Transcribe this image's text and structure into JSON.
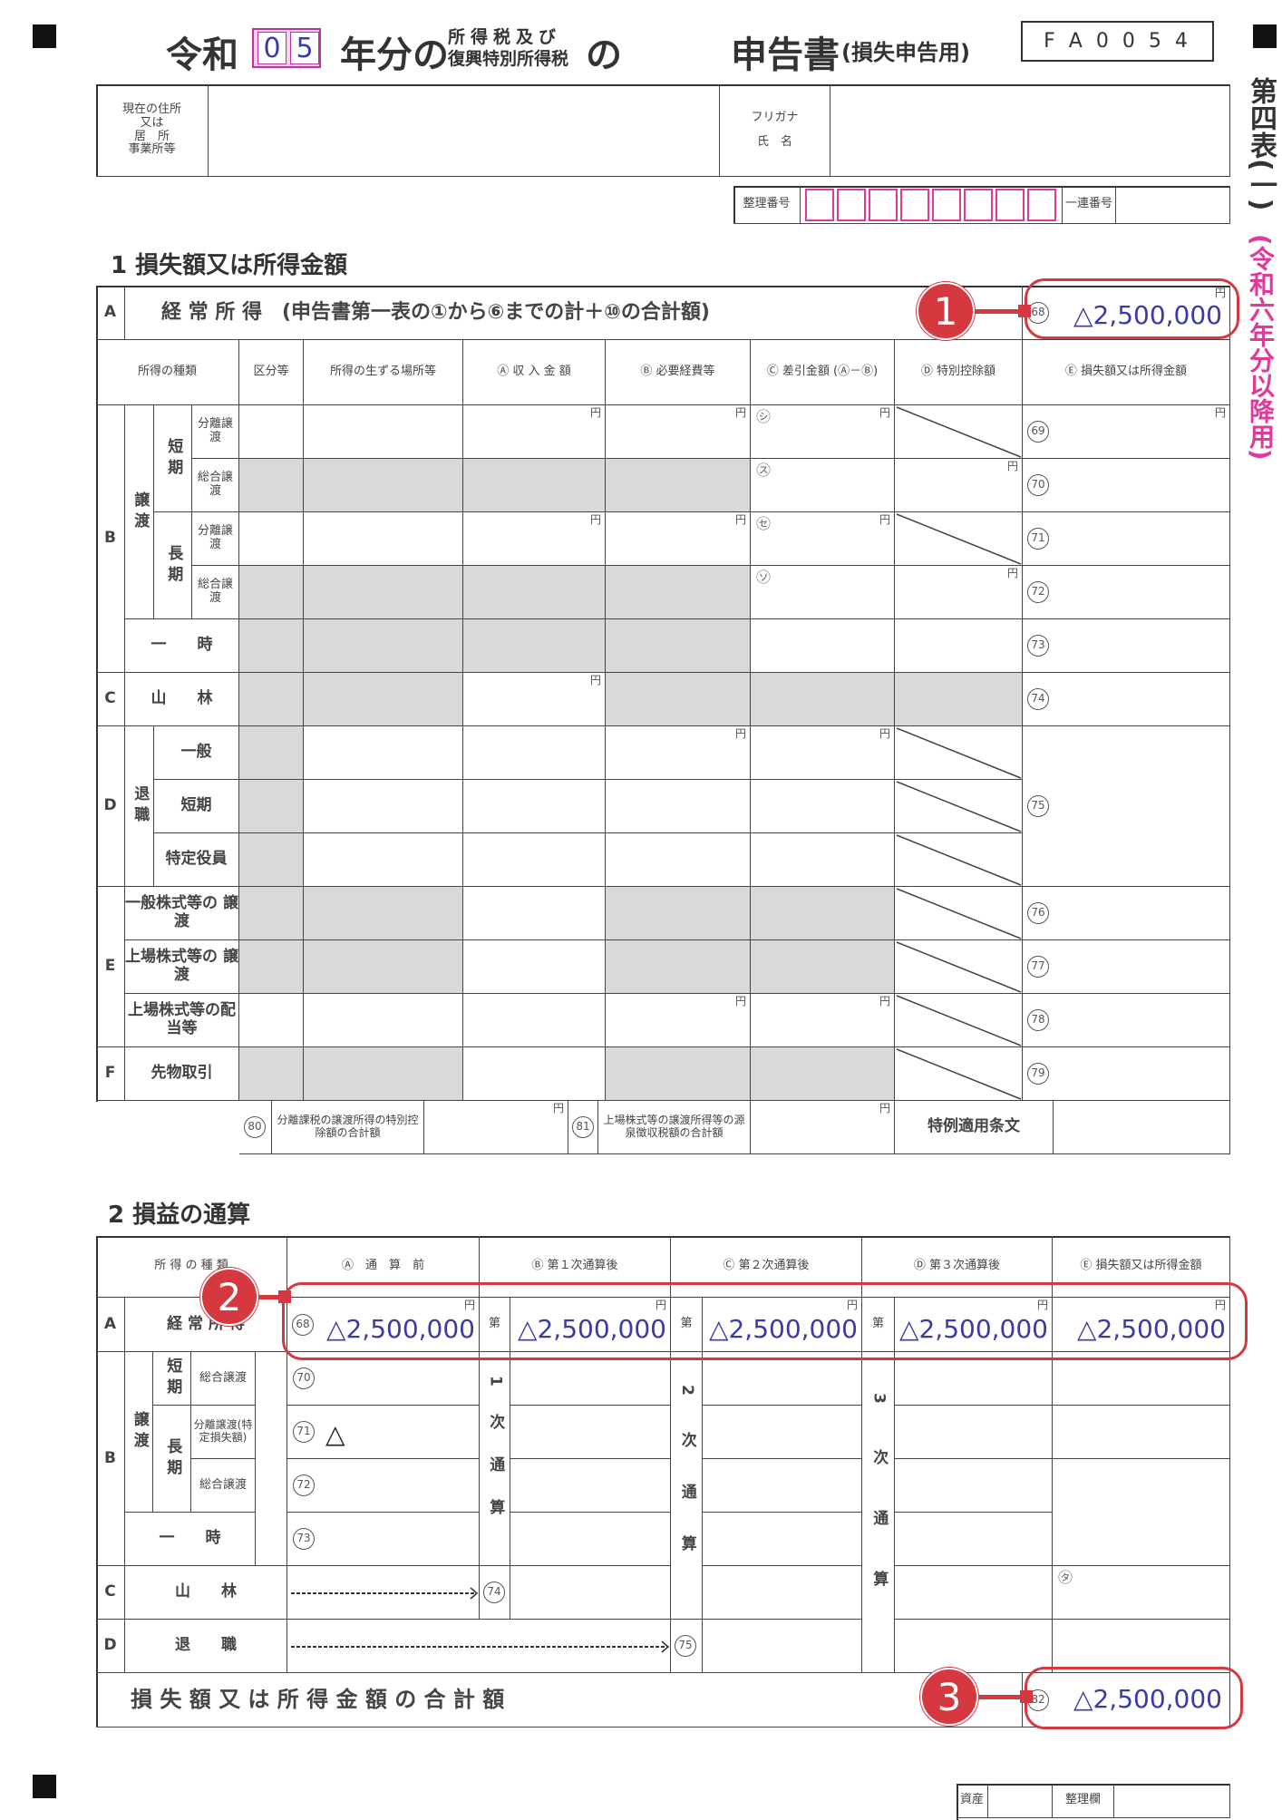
{
  "header": {
    "era": "令和",
    "year_digits": [
      "0",
      "5"
    ],
    "year_suffix": "年分の",
    "tax_line1": "所得税及び",
    "tax_line2": "復興特別所得税",
    "no": "の",
    "form_title": "申告書",
    "form_subtitle": "(損失申告用)",
    "form_code": "F A 0 0 5 4",
    "side_label": "第四表(一)",
    "side_note": "(令和六年分以降用)"
  },
  "address": {
    "label_lines": [
      "現在の住所",
      "又は",
      "居　所",
      "事業所等"
    ],
    "furigana": "フリガナ",
    "name": "氏　名"
  },
  "seiri": {
    "label": "整理番号",
    "ichiren": "一連番号"
  },
  "colors": {
    "value_blue": "#3b3ba8",
    "annotation_red": "#d6383f",
    "shade_gray": "#d9d9d9",
    "pink": "#e0399a"
  },
  "section1": {
    "title": "1 損失額又は所得金額",
    "unit": "円",
    "row_a": {
      "letter": "A",
      "label": "経 常 所 得　(申告書第一表の①から⑥までの計＋⑩の合計額)",
      "num": "68",
      "value": "△2,500,000"
    },
    "headers": [
      "所得の種類",
      "区分等",
      "所得の生ずる場所等",
      "Ⓐ 収 入 金 額",
      "Ⓑ 必要経費等",
      "Ⓒ 差引金額 (Ⓐ－Ⓑ)",
      "Ⓓ 特別控除額",
      "Ⓔ 損失額又は所得金額"
    ],
    "kinds": {
      "B": "B",
      "joto": "譲渡",
      "tanki_v": "短期",
      "choki_v": "長期",
      "bunri": "分離譲渡",
      "sogo": "総合譲渡",
      "ichiji": "一　　時",
      "C": "C",
      "sanrin": "山　　林",
      "D": "D",
      "taishoku": "退職",
      "ippan": "一般",
      "tanki": "短期",
      "tokutei": "特定役員",
      "E": "E",
      "ippan_kabu": "一般株式等の 譲 渡",
      "jojo_kabu": "上場株式等の 譲 渡",
      "jojo_haito": "上場株式等の配当等",
      "F": "F",
      "sakimono": "先物取引"
    },
    "nums": [
      "69",
      "70",
      "71",
      "72",
      "73",
      "74",
      "75",
      "76",
      "77",
      "78",
      "79"
    ],
    "c_marks": [
      "㋛",
      "㋜",
      "㋝",
      "㋞"
    ],
    "footer_row": {
      "n80": "80",
      "l80": "分離課税の譲渡所得の特別控除額の合計額",
      "n81": "81",
      "l81": "上場株式等の譲渡所得等の源泉徴収税額の合計額",
      "tokurei": "特例適用条文"
    }
  },
  "section2": {
    "title": "2 損益の通算",
    "unit": "円",
    "headers": [
      "所 得 の 種 類",
      "Ⓐ　通　算　前",
      "Ⓑ 第１次通算後",
      "Ⓒ 第２次通算後",
      "Ⓓ 第３次通算後",
      "Ⓔ 損失額又は所得金額"
    ],
    "row_a": {
      "letter": "A",
      "label": "経 常 所 得",
      "num": "68",
      "dai": "第",
      "values": [
        "△2,500,000",
        "△2,500,000",
        "△2,500,000",
        "△2,500,000",
        "△2,500,000"
      ]
    },
    "kinds": {
      "B": "B",
      "joto": "譲渡",
      "tanki_v": "短期",
      "choki_v": "長期",
      "sogo": "総合譲渡",
      "bunri": "分離譲渡(特定損失額)",
      "ichiji": "一　　時",
      "C": "C",
      "sanrin": "山　　林",
      "D": "D",
      "taishoku": "退　　職"
    },
    "nums": [
      "70",
      "71",
      "72",
      "73",
      "74",
      "75"
    ],
    "b2_value": "△",
    "pass_labels": [
      "1次通算",
      "2次通算",
      "3次通算"
    ],
    "e_mark": "㋟",
    "total": {
      "label": "損 失 額 又 は 所 得 金 額 の 合 計 額",
      "num": "82",
      "value": "△2,500,000"
    }
  },
  "annotations": [
    "1",
    "2",
    "3"
  ],
  "footer": {
    "shisan": "資産",
    "seiri": "整理欄"
  }
}
